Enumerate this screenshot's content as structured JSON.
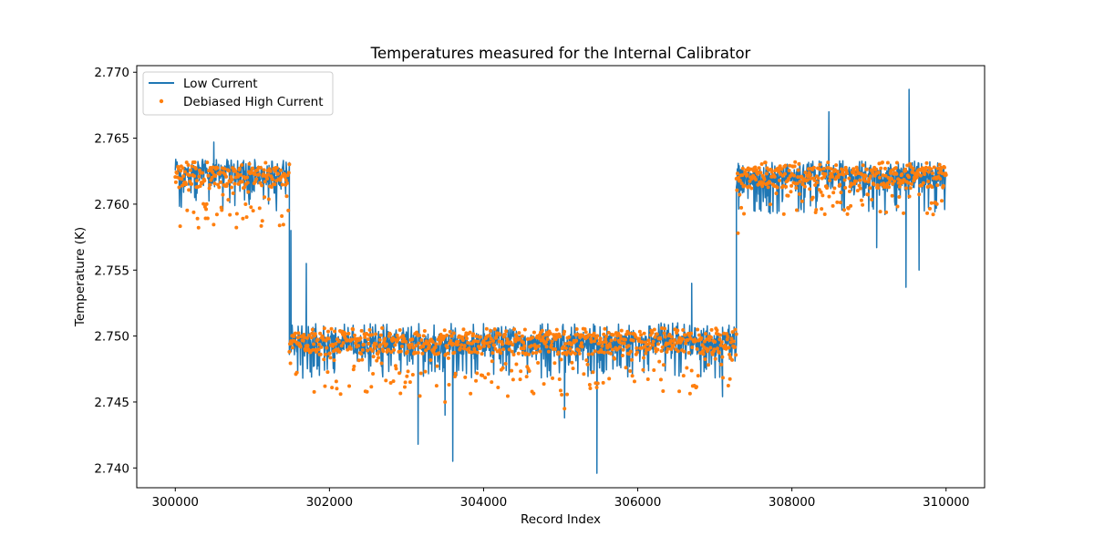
{
  "chart_data": {
    "type": "line",
    "title": "Temperatures measured for the Internal Calibrator",
    "xlabel": "Record Index",
    "ylabel": "Temperature (K)",
    "xlim": [
      299500,
      310500
    ],
    "ylim": [
      2.7385,
      2.7705
    ],
    "x_ticks": [
      300000,
      302000,
      304000,
      306000,
      308000,
      310000
    ],
    "x_tick_labels": [
      "300000",
      "302000",
      "304000",
      "306000",
      "308000",
      "310000"
    ],
    "y_ticks": [
      2.74,
      2.745,
      2.75,
      2.755,
      2.76,
      2.765,
      2.77
    ],
    "y_tick_labels": [
      "2.740",
      "2.745",
      "2.750",
      "2.755",
      "2.760",
      "2.765",
      "2.770"
    ],
    "grid": false,
    "legend_position": "top-left",
    "series": [
      {
        "name": "Low Current",
        "style": "line",
        "color": "#1f77b4",
        "segments": [
          {
            "x_start": 300000,
            "x_end": 301480,
            "baseline": 2.7622,
            "spread_up": 0.0012,
            "spread_down": 0.0028
          },
          {
            "x_start": 301480,
            "x_end": 307280,
            "baseline": 2.7494,
            "spread_up": 0.0016,
            "spread_down": 0.0026
          },
          {
            "x_start": 307280,
            "x_end": 310000,
            "baseline": 2.762,
            "spread_up": 0.0013,
            "spread_down": 0.0028
          }
        ],
        "spikes": [
          {
            "x": 301500,
            "y": 2.758
          },
          {
            "x": 301700,
            "y": 2.7555
          },
          {
            "x": 303150,
            "y": 2.7418
          },
          {
            "x": 303600,
            "y": 2.7405
          },
          {
            "x": 303500,
            "y": 2.744
          },
          {
            "x": 305470,
            "y": 2.7396
          },
          {
            "x": 305050,
            "y": 2.7438
          },
          {
            "x": 306700,
            "y": 2.754
          },
          {
            "x": 307100,
            "y": 2.7454
          },
          {
            "x": 308480,
            "y": 2.767
          },
          {
            "x": 309520,
            "y": 2.7687
          },
          {
            "x": 309480,
            "y": 2.7537
          },
          {
            "x": 309650,
            "y": 2.755
          },
          {
            "x": 309100,
            "y": 2.7567
          },
          {
            "x": 300500,
            "y": 2.7647
          }
        ]
      },
      {
        "name": "Debiased High Current",
        "style": "scatter",
        "color": "#ff7f0e",
        "segments": [
          {
            "x_start": 300000,
            "x_end": 301480,
            "baseline": 2.762,
            "spread_up": 0.0012,
            "spread_down": 0.0038
          },
          {
            "x_start": 301480,
            "x_end": 307280,
            "baseline": 2.7494,
            "spread_up": 0.0012,
            "spread_down": 0.004
          },
          {
            "x_start": 307280,
            "x_end": 310000,
            "baseline": 2.762,
            "spread_up": 0.0012,
            "spread_down": 0.0028
          }
        ],
        "highlights": [
          {
            "x": 305050,
            "y": 2.7445
          },
          {
            "x": 303500,
            "y": 2.745
          },
          {
            "x": 307300,
            "y": 2.7578
          }
        ]
      }
    ]
  }
}
